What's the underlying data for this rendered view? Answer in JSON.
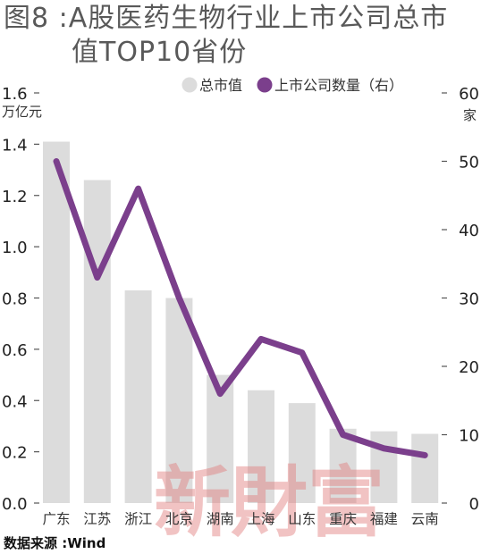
{
  "title_line1": "图8 :A股医药生物行业上市公司总市",
  "title_line2": "值TOP10省份",
  "source": "数据来源 :Wind",
  "watermark": "新財富",
  "colors": {
    "bar": "#dcdcdc",
    "line": "#7b3f8c",
    "title": "#595959"
  },
  "chart_data": {
    "type": "bar",
    "categories": [
      "广东",
      "江苏",
      "浙江",
      "北京",
      "湖南",
      "上海",
      "山东",
      "重庆",
      "福建",
      "云南"
    ],
    "series": [
      {
        "name": "总市值",
        "type": "bar",
        "axis": "left",
        "values": [
          1.41,
          1.26,
          0.83,
          0.8,
          0.5,
          0.44,
          0.39,
          0.29,
          0.28,
          0.27
        ]
      },
      {
        "name": "上市公司数量（右）",
        "type": "line",
        "axis": "right",
        "values": [
          50,
          33,
          46,
          30,
          16,
          24,
          22,
          10,
          8,
          7
        ]
      }
    ],
    "left_axis": {
      "unit": "万亿元",
      "ylim": [
        0,
        1.6
      ],
      "ticks": [
        "0.0",
        "0.2",
        "0.4",
        "0.6",
        "0.8",
        "1.0",
        "1.2",
        "1.4",
        "1.6"
      ]
    },
    "right_axis": {
      "unit": "家",
      "ylim": [
        0,
        60
      ],
      "ticks": [
        "0",
        "10",
        "20",
        "30",
        "40",
        "50",
        "60"
      ]
    },
    "legend_placement": "top-right",
    "grid": false
  }
}
